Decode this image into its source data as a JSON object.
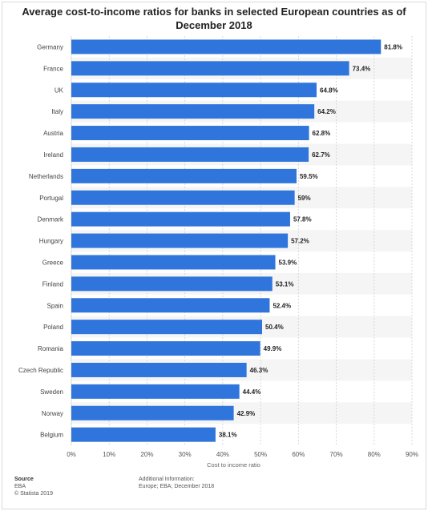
{
  "title": "Average cost-to-income ratios for banks in selected European countries as of December 2018",
  "colors": {
    "bar": "#2f75db",
    "band": "#f5f5f5",
    "grid": "#cfcfcf"
  },
  "chart_data": {
    "type": "bar",
    "orientation": "horizontal",
    "categories": [
      "Germany",
      "France",
      "UK",
      "Italy",
      "Austria",
      "Ireland",
      "Netherlands",
      "Portugal",
      "Denmark",
      "Hungary",
      "Greece",
      "Finland",
      "Spain",
      "Poland",
      "Romania",
      "Czech Republic",
      "Sweden",
      "Norway",
      "Belgium"
    ],
    "values": [
      81.8,
      73.4,
      64.8,
      64.2,
      62.8,
      62.7,
      59.5,
      59,
      57.8,
      57.2,
      53.9,
      53.1,
      52.4,
      50.4,
      49.9,
      46.3,
      44.4,
      42.9,
      38.1
    ],
    "value_labels": [
      "81.8%",
      "73.4%",
      "64.8%",
      "64.2%",
      "62.8%",
      "62.7%",
      "59.5%",
      "59%",
      "57.8%",
      "57.2%",
      "53.9%",
      "53.1%",
      "52.4%",
      "50.4%",
      "49.9%",
      "46.3%",
      "44.4%",
      "42.9%",
      "38.1%"
    ],
    "xlim": [
      0,
      90
    ],
    "ticks": [
      0,
      10,
      20,
      30,
      40,
      50,
      60,
      70,
      80,
      90
    ],
    "tick_labels": [
      "0%",
      "10%",
      "20%",
      "30%",
      "40%",
      "50%",
      "60%",
      "70%",
      "80%",
      "90%"
    ],
    "xlabel": "Cost to income ratio",
    "grid": true
  },
  "footer": {
    "source_heading": "Source",
    "source_text": "EBA",
    "copyright": "© Statista 2019",
    "additional_heading": "Additional Information:",
    "additional_text": "Europe; EBA; December 2018"
  }
}
